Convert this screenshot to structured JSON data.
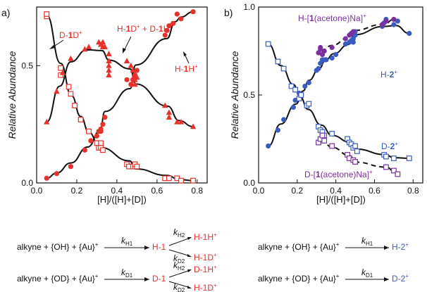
{
  "chart_data": [
    {
      "type": "scatter",
      "panel": "a)",
      "xlabel": "[H]/([H]+[D])",
      "ylabel": "Relative Abundance",
      "xlim": [
        0.0,
        0.85
      ],
      "ylim": [
        0.0,
        0.75
      ],
      "xticks": [
        "0.0",
        "0.2",
        "0.4",
        "0.6",
        "0.8"
      ],
      "yticks": [
        "0.0",
        "0.5"
      ],
      "grid": false,
      "colors": {
        "data": "#e8312a",
        "fit": "#111111"
      },
      "series": [
        {
          "name": "D-1D+",
          "marker": "open-square",
          "color": "#e8312a",
          "points": [
            [
              0.05,
              0.71
            ],
            [
              0.05,
              0.72
            ],
            [
              0.12,
              0.49
            ],
            [
              0.12,
              0.46
            ],
            [
              0.16,
              0.41
            ],
            [
              0.17,
              0.38
            ],
            [
              0.19,
              0.33
            ],
            [
              0.22,
              0.27
            ],
            [
              0.26,
              0.22
            ],
            [
              0.3,
              0.17
            ],
            [
              0.31,
              0.15
            ],
            [
              0.32,
              0.17
            ],
            [
              0.32,
              0.15
            ],
            [
              0.33,
              0.14
            ],
            [
              0.45,
              0.08
            ],
            [
              0.46,
              0.07
            ],
            [
              0.48,
              0.07
            ],
            [
              0.49,
              0.07
            ],
            [
              0.49,
              0.08
            ],
            [
              0.5,
              0.07
            ],
            [
              0.64,
              0.02
            ],
            [
              0.66,
              0.02
            ],
            [
              0.7,
              0.02
            ],
            [
              0.72,
              0.01
            ],
            [
              0.78,
              0.01
            ]
          ]
        },
        {
          "name": "H-1D+ + D-1H+",
          "marker": "filled-triangle",
          "color": "#e8312a",
          "points": [
            [
              0.05,
              0.26
            ],
            [
              0.1,
              0.39
            ],
            [
              0.13,
              0.47
            ],
            [
              0.17,
              0.53
            ],
            [
              0.24,
              0.57
            ],
            [
              0.26,
              0.58
            ],
            [
              0.31,
              0.6
            ],
            [
              0.32,
              0.59
            ],
            [
              0.33,
              0.58
            ],
            [
              0.33,
              0.6
            ],
            [
              0.34,
              0.58
            ],
            [
              0.36,
              0.55
            ],
            [
              0.36,
              0.52
            ],
            [
              0.36,
              0.5
            ],
            [
              0.36,
              0.48
            ],
            [
              0.36,
              0.46
            ],
            [
              0.45,
              0.52
            ],
            [
              0.47,
              0.5
            ],
            [
              0.48,
              0.48
            ],
            [
              0.49,
              0.46
            ],
            [
              0.49,
              0.44
            ],
            [
              0.49,
              0.42
            ],
            [
              0.5,
              0.45
            ],
            [
              0.64,
              0.33
            ],
            [
              0.66,
              0.3
            ],
            [
              0.66,
              0.28
            ],
            [
              0.7,
              0.26
            ],
            [
              0.72,
              0.26
            ],
            [
              0.78,
              0.24
            ]
          ]
        },
        {
          "name": "H-1H+",
          "marker": "filled-circle",
          "color": "#e8312a",
          "points": [
            [
              0.05,
              0.02
            ],
            [
              0.1,
              0.04
            ],
            [
              0.17,
              0.07
            ],
            [
              0.24,
              0.14
            ],
            [
              0.27,
              0.18
            ],
            [
              0.3,
              0.2
            ],
            [
              0.31,
              0.22
            ],
            [
              0.32,
              0.22
            ],
            [
              0.32,
              0.23
            ],
            [
              0.33,
              0.25
            ],
            [
              0.34,
              0.28
            ],
            [
              0.45,
              0.44
            ],
            [
              0.47,
              0.42
            ],
            [
              0.48,
              0.44
            ],
            [
              0.49,
              0.45
            ],
            [
              0.49,
              0.46
            ],
            [
              0.5,
              0.48
            ],
            [
              0.64,
              0.63
            ],
            [
              0.65,
              0.65
            ],
            [
              0.66,
              0.67
            ],
            [
              0.68,
              0.68
            ],
            [
              0.7,
              0.72
            ],
            [
              0.72,
              0.7
            ],
            [
              0.78,
              0.73
            ]
          ]
        }
      ],
      "annotations": [
        {
          "text": "D-1D+",
          "parts": [
            "D-",
            "1",
            "D",
            "+"
          ],
          "color": "#e8312a"
        },
        {
          "text": "H-1D+ + D-1H+",
          "parts": [
            "H-",
            "1",
            "D",
            "+",
            " + D-",
            "1",
            "H",
            "+"
          ],
          "color": "#e8312a"
        },
        {
          "text": "H-1H+",
          "parts": [
            "H-",
            "1",
            "H",
            "+"
          ],
          "color": "#e8312a"
        }
      ]
    },
    {
      "type": "scatter",
      "panel": "b)",
      "xlabel": "[H]/([H]+[D])",
      "ylabel": "Relative Abundance",
      "xlim": [
        0.0,
        0.85
      ],
      "ylim": [
        0.0,
        1.0
      ],
      "xticks": [
        "0.0",
        "0.2",
        "0.4",
        "0.6",
        "0.8"
      ],
      "yticks": [
        "0.0",
        "0.5",
        "1.0"
      ],
      "grid": false,
      "colors": {
        "blue": "#3a5bbf",
        "purple": "#7b2f9e",
        "fit": "#111111"
      },
      "series": [
        {
          "name": "H-2+",
          "marker": "filled-circle",
          "color": "#3a5bbf",
          "points": [
            [
              0.05,
              0.21
            ],
            [
              0.1,
              0.3
            ],
            [
              0.13,
              0.36
            ],
            [
              0.18,
              0.43
            ],
            [
              0.19,
              0.47
            ],
            [
              0.21,
              0.51
            ],
            [
              0.22,
              0.5
            ],
            [
              0.24,
              0.55
            ],
            [
              0.26,
              0.57
            ],
            [
              0.3,
              0.64
            ],
            [
              0.31,
              0.65
            ],
            [
              0.32,
              0.68
            ],
            [
              0.33,
              0.7
            ],
            [
              0.34,
              0.7
            ],
            [
              0.35,
              0.7
            ],
            [
              0.38,
              0.71
            ],
            [
              0.4,
              0.73
            ],
            [
              0.45,
              0.79
            ],
            [
              0.47,
              0.8
            ],
            [
              0.48,
              0.81
            ],
            [
              0.49,
              0.8
            ],
            [
              0.49,
              0.82
            ],
            [
              0.5,
              0.84
            ],
            [
              0.5,
              0.86
            ],
            [
              0.64,
              0.89
            ],
            [
              0.65,
              0.91
            ],
            [
              0.66,
              0.93
            ],
            [
              0.7,
              0.9
            ],
            [
              0.72,
              0.92
            ],
            [
              0.78,
              0.85
            ]
          ]
        },
        {
          "name": "D-2+",
          "marker": "open-square",
          "color": "#3a5bbf",
          "points": [
            [
              0.05,
              0.79
            ],
            [
              0.1,
              0.69
            ],
            [
              0.13,
              0.65
            ],
            [
              0.17,
              0.55
            ],
            [
              0.19,
              0.53
            ],
            [
              0.21,
              0.48
            ],
            [
              0.22,
              0.5
            ],
            [
              0.25,
              0.44
            ],
            [
              0.26,
              0.45
            ],
            [
              0.31,
              0.32
            ],
            [
              0.32,
              0.3
            ],
            [
              0.33,
              0.29
            ],
            [
              0.34,
              0.27
            ],
            [
              0.38,
              0.28
            ],
            [
              0.46,
              0.25
            ],
            [
              0.47,
              0.23
            ],
            [
              0.48,
              0.22
            ],
            [
              0.49,
              0.2
            ],
            [
              0.5,
              0.21
            ],
            [
              0.51,
              0.18
            ],
            [
              0.65,
              0.16
            ],
            [
              0.66,
              0.15
            ],
            [
              0.7,
              0.14
            ],
            [
              0.78,
              0.14
            ]
          ]
        },
        {
          "name": "H-[1(acetone)Na]+",
          "marker": "filled-circle",
          "color": "#7b2f9e",
          "points": [
            [
              0.31,
              0.74
            ],
            [
              0.32,
              0.76
            ],
            [
              0.32,
              0.77
            ],
            [
              0.33,
              0.73
            ],
            [
              0.34,
              0.75
            ],
            [
              0.38,
              0.77
            ],
            [
              0.45,
              0.82
            ],
            [
              0.47,
              0.84
            ],
            [
              0.48,
              0.85
            ],
            [
              0.49,
              0.86
            ],
            [
              0.64,
              0.9
            ],
            [
              0.66,
              0.92
            ],
            [
              0.7,
              0.93
            ]
          ]
        },
        {
          "name": "D-[1(acetone)Na]+",
          "marker": "open-square",
          "color": "#7b2f9e",
          "points": [
            [
              0.31,
              0.23
            ],
            [
              0.32,
              0.25
            ],
            [
              0.33,
              0.27
            ],
            [
              0.34,
              0.24
            ],
            [
              0.38,
              0.21
            ],
            [
              0.46,
              0.16
            ],
            [
              0.47,
              0.14
            ],
            [
              0.49,
              0.13
            ],
            [
              0.5,
              0.12
            ],
            [
              0.66,
              0.09
            ],
            [
              0.7,
              0.07
            ],
            [
              0.72,
              0.05
            ]
          ]
        }
      ],
      "annotations": [
        {
          "text": "H-[1(acetone)Na]+",
          "parts": [
            "H-[",
            "1",
            "(acetone)Na]",
            "+"
          ],
          "color": "#7b2f9e"
        },
        {
          "text": "H-2+",
          "parts": [
            "H-",
            "2",
            "+"
          ],
          "color": "#3a5bbf"
        },
        {
          "text": "D-2+",
          "parts": [
            "D-",
            "2",
            "+"
          ],
          "color": "#3a5bbf"
        },
        {
          "text": "D-[1(acetone)Na]+",
          "parts": [
            "D-[",
            "1",
            "(acetone)Na]",
            "+"
          ],
          "color": "#7b2f9e"
        }
      ]
    }
  ],
  "schemes": {
    "left": {
      "reactant_h": "alkyne + {OH} + {Au}",
      "reactant_h_sup": "+",
      "reactant_d": "alkyne + {OD} + {Au}",
      "reactant_d_sup": "+",
      "k_h1": "k",
      "k_h1_sub": "H1",
      "k_d1": "k",
      "k_d1_sub": "D1",
      "k_h2": "k",
      "k_h2_sub": "H2",
      "k_d2": "k",
      "k_d2_sub": "D2",
      "k_h2b": "k",
      "k_h2b_sub": "H2",
      "k_d2b": "k",
      "k_d2b_sub": "D2",
      "int_h": "H-1",
      "int_d": "D-1",
      "prod_hh": "H-1H",
      "prod_hh_sup": "+",
      "prod_hd": "H-1D",
      "prod_hd_sup": "+",
      "prod_dh": "D-1H",
      "prod_dh_sup": "+",
      "prod_dd": "H-1D",
      "prod_dd_sup": "+"
    },
    "right": {
      "reactant_h": "alkyne + {OH} + {Au}",
      "reactant_h_sup": "+",
      "reactant_d": "alkyne + {OD} + {Au}",
      "reactant_d_sup": "+",
      "k_h1": "k",
      "k_h1_sub": "H1",
      "k_d1": "k",
      "k_d1_sub": "D1",
      "prod_h": "H-2",
      "prod_h_sup": "+",
      "prod_d": "D-2",
      "prod_d_sup": "+"
    },
    "colors": {
      "red": "#e8312a",
      "blue": "#3a5bbf",
      "black": "#111111"
    }
  }
}
